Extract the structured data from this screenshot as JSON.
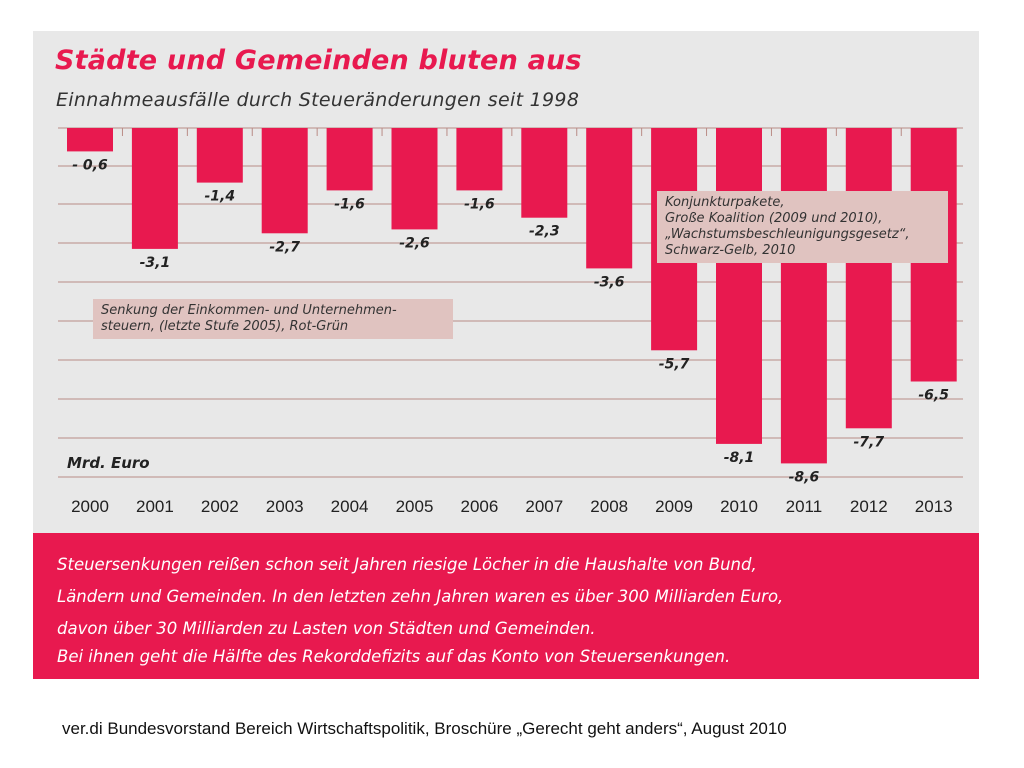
{
  "chart_data": {
    "type": "bar",
    "title": "Städte und Gemeinden bluten aus",
    "subtitle": "Einnahmeausfälle durch Steueränderungen seit 1998",
    "unit_label": "Mrd. Euro",
    "categories": [
      "2000",
      "2001",
      "2002",
      "2003",
      "2004",
      "2005",
      "2006",
      "2007",
      "2008",
      "2009",
      "2010",
      "2011",
      "2012",
      "2013"
    ],
    "values": [
      -0.6,
      -3.1,
      -1.4,
      -2.7,
      -1.6,
      -2.6,
      -1.6,
      -2.3,
      -3.6,
      -5.7,
      -8.1,
      -8.6,
      -7.7,
      -6.5
    ],
    "value_labels": [
      "- 0,6",
      "-3,1",
      "-1,4",
      "-2,7",
      "-1,6",
      "-2,6",
      "-1,6",
      "-2,3",
      "-3,6",
      "-5,7",
      "-8,1",
      "-8,6",
      "-7,7",
      "-6,5"
    ],
    "ylim": [
      -9,
      0
    ],
    "grid": true,
    "bar_color": "#e8194f",
    "annotations": [
      {
        "lines": [
          "Senkung der Einkommen- und Unternehmen-",
          "steuern, (letzte Stufe 2005), Rot-Grün"
        ]
      },
      {
        "lines": [
          "Konjunkturpakete,",
          "Große Koalition (2009 und 2010),",
          "„Wachstumsbeschleunigungsgesetz“,",
          "Schwarz-Gelb, 2010"
        ]
      }
    ]
  },
  "banner": {
    "lines": [
      "Steuersenkungen reißen schon seit Jahren riesige Löcher in die Haushalte von Bund,",
      "Ländern und Gemeinden. In den letzten zehn Jahren waren es über 300 Milliarden Euro,",
      "davon über 30 Milliarden zu Lasten von Städten und Gemeinden.",
      "Bei ihnen geht die Hälfte des Rekorddefizits auf das Konto von Steuersenkungen."
    ],
    "color": "#e8194f"
  },
  "source": "ver.di Bundesvorstand Bereich Wirtschaftspolitik, Broschüre „Gerecht geht anders“, August 2010"
}
